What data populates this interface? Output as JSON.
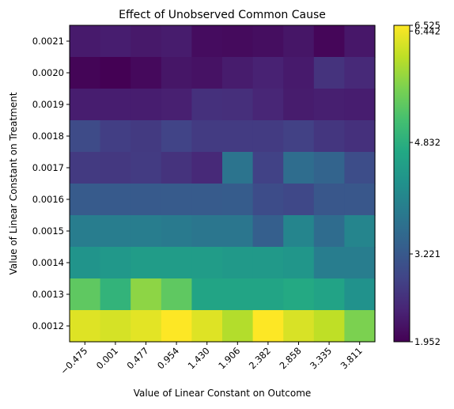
{
  "chart_data": {
    "type": "heatmap",
    "title": "Effect of Unobserved Common Cause",
    "xlabel": "Value of Linear Constant on Outcome",
    "ylabel": "Value of Linear Constant on Treatment",
    "x_categories": [
      "−0.475",
      "0.001",
      "0.477",
      "0.954",
      "1.430",
      "1.906",
      "2.382",
      "2.858",
      "3.335",
      "3.811"
    ],
    "y_categories": [
      "0.0021",
      "0.0020",
      "0.0019",
      "0.0018",
      "0.0017",
      "0.0016",
      "0.0015",
      "0.0014",
      "0.0013",
      "0.0012"
    ],
    "values": [
      [
        2.28,
        2.32,
        2.26,
        2.3,
        2.1,
        2.08,
        2.12,
        2.22,
        2.02,
        2.24
      ],
      [
        2.0,
        1.952,
        2.06,
        2.22,
        2.18,
        2.3,
        2.38,
        2.28,
        2.62,
        2.48
      ],
      [
        2.32,
        2.32,
        2.32,
        2.36,
        2.58,
        2.56,
        2.44,
        2.3,
        2.34,
        2.32
      ],
      [
        2.98,
        2.78,
        2.72,
        2.86,
        2.74,
        2.74,
        2.74,
        2.82,
        2.66,
        2.58
      ],
      [
        2.72,
        2.7,
        2.74,
        2.62,
        2.48,
        3.7,
        2.84,
        3.58,
        3.42,
        3.02
      ],
      [
        3.26,
        3.24,
        3.24,
        3.26,
        3.26,
        3.28,
        3.0,
        2.94,
        3.18,
        3.18
      ],
      [
        3.88,
        3.88,
        3.88,
        3.82,
        3.74,
        3.74,
        3.32,
        4.02,
        3.56,
        4.02
      ],
      [
        4.3,
        4.38,
        4.46,
        4.46,
        4.46,
        4.4,
        4.4,
        4.34,
        3.88,
        3.88
      ],
      [
        5.38,
        4.92,
        5.74,
        5.38,
        4.62,
        4.62,
        4.62,
        4.72,
        4.6,
        4.26
      ],
      [
        6.3,
        6.24,
        6.34,
        6.525,
        6.3,
        6.0,
        6.525,
        6.26,
        6.08,
        5.62
      ]
    ],
    "colormap": "viridis",
    "colorbar_ticks": [
      "1.952",
      "3.221",
      "4.832",
      "6.442",
      "6.525"
    ],
    "vmin": 1.952,
    "vmax": 6.525
  }
}
